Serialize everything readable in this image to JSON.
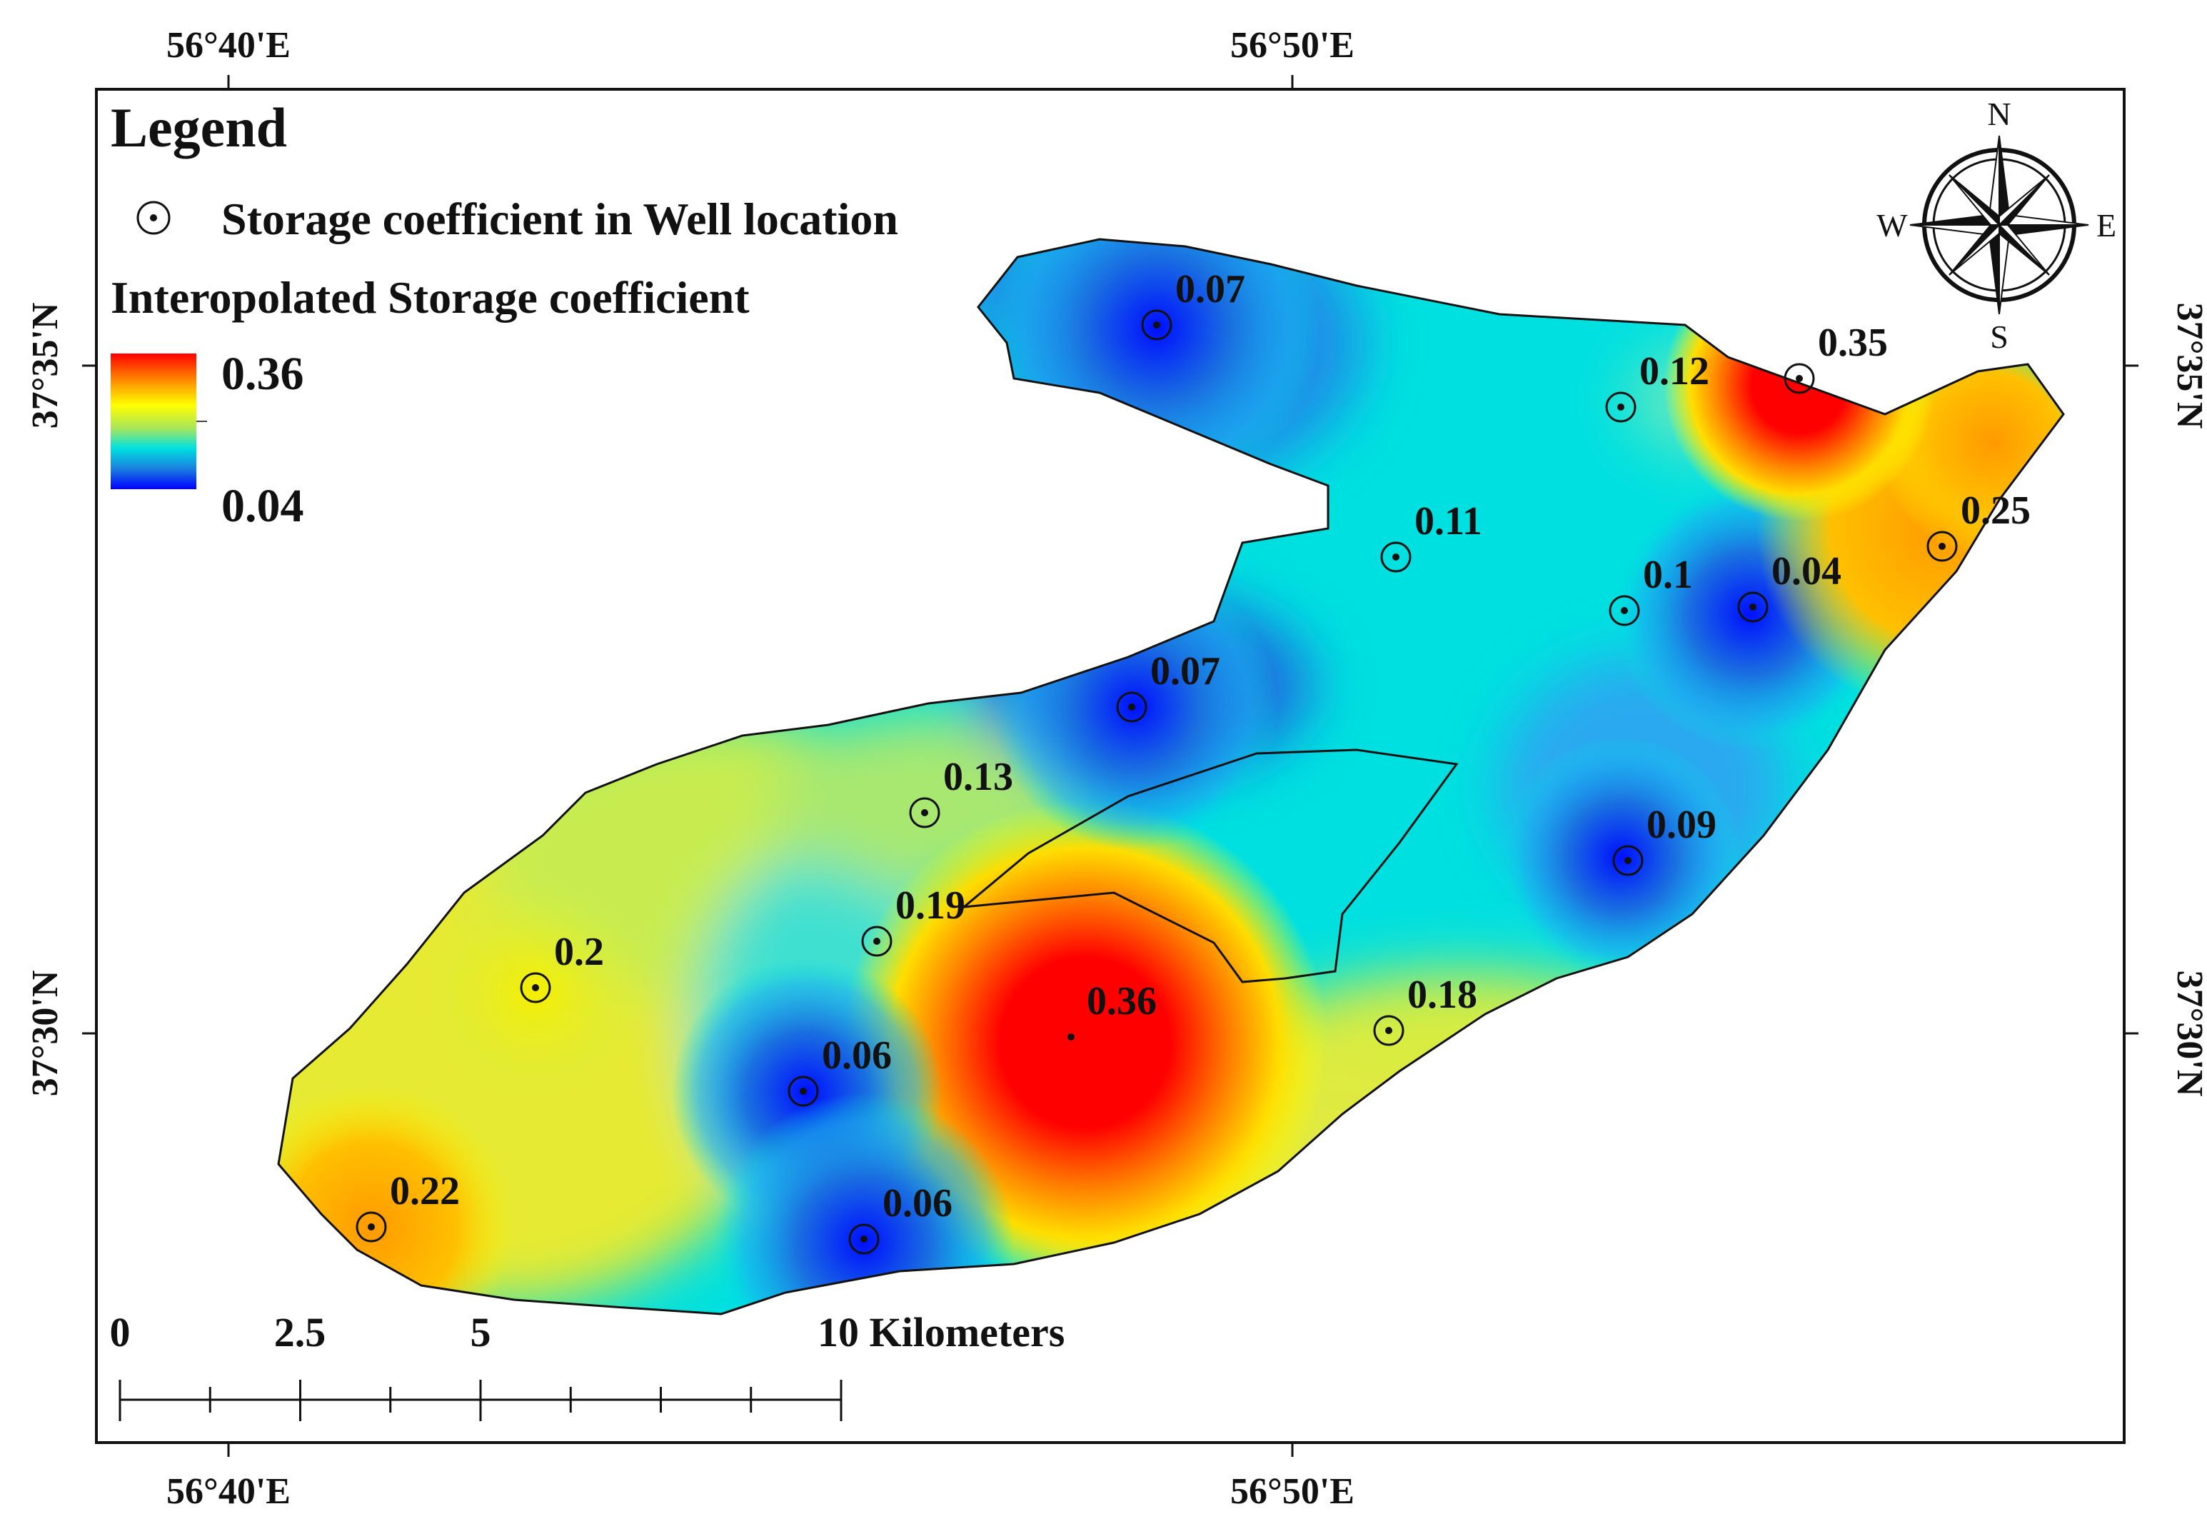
{
  "coordinates": {
    "top": [
      "56°40'E",
      "56°50'E"
    ],
    "bottom": [
      "56°40'E",
      "56°50'E"
    ],
    "left": [
      "37°35'N",
      "37°30'N"
    ],
    "right": [
      "37°35'N",
      "37°30'N"
    ]
  },
  "legend": {
    "title": "Legend",
    "point_label": "Storage coefficient in Well location",
    "raster_label": "Interopolated Storage coefficient",
    "max_label": "0.36",
    "min_label": "0.04",
    "colors": [
      "#ff0000",
      "#ff8c00",
      "#ffff00",
      "#a8e65a",
      "#00e0e0",
      "#1a7fe0",
      "#0000ff"
    ]
  },
  "compass": {
    "n": "N",
    "s": "S",
    "e": "E",
    "w": "W"
  },
  "scale_bar": {
    "labels": [
      "0",
      "2.5",
      "5",
      "10 Kilometers"
    ],
    "values": [
      0,
      2.5,
      5,
      10
    ]
  },
  "wells": [
    {
      "label": "0.07"
    },
    {
      "label": "0.12"
    },
    {
      "label": "0.35"
    },
    {
      "label": "0.11"
    },
    {
      "label": "0.25"
    },
    {
      "label": "0.1"
    },
    {
      "label": "0.04"
    },
    {
      "label": "0.07"
    },
    {
      "label": "0.13"
    },
    {
      "label": "0.09"
    },
    {
      "label": "0.19"
    },
    {
      "label": "0.2"
    },
    {
      "label": "0.36"
    },
    {
      "label": "0.18"
    },
    {
      "label": "0.06"
    },
    {
      "label": "0.22"
    },
    {
      "label": "0.06"
    }
  ]
}
